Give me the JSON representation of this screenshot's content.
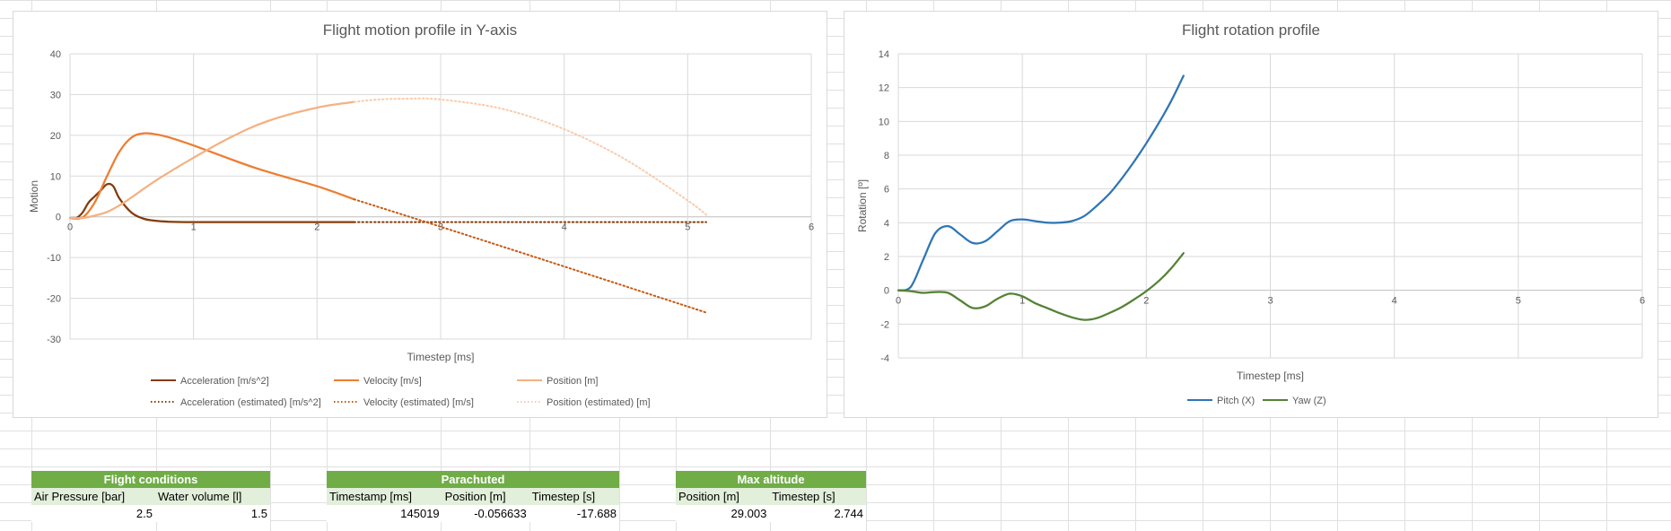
{
  "chart_data": [
    {
      "type": "line",
      "title": "Flight motion profile in Y-axis",
      "xlabel": "Timestep [ms]",
      "ylabel": "Motion",
      "xlim": [
        0,
        6
      ],
      "ylim": [
        -30,
        40
      ],
      "x_ticks": [
        0,
        1,
        2,
        3,
        4,
        5,
        6
      ],
      "y_ticks": [
        -30,
        -20,
        -10,
        0,
        10,
        20,
        30,
        40
      ],
      "grid": true,
      "legend_position": "bottom",
      "series": [
        {
          "name": "Acceleration [m/s^2]",
          "color": "#843c0c",
          "style": "solid",
          "x": [
            0,
            0.05,
            0.1,
            0.15,
            0.2,
            0.25,
            0.3,
            0.35,
            0.4,
            0.5,
            0.6,
            0.7,
            0.8,
            1.0,
            1.5,
            2.0,
            2.3
          ],
          "y": [
            -0.3,
            -0.3,
            1.0,
            3.5,
            5.0,
            6.5,
            8.0,
            7.5,
            4.5,
            1.0,
            -0.5,
            -1.0,
            -1.2,
            -1.3,
            -1.3,
            -1.3,
            -1.3
          ]
        },
        {
          "name": "Velocity [m/s]",
          "color": "#ed7d31",
          "style": "solid",
          "x": [
            0,
            0.1,
            0.2,
            0.3,
            0.4,
            0.5,
            0.6,
            0.7,
            0.8,
            1.0,
            1.5,
            2.0,
            2.3
          ],
          "y": [
            -0.3,
            -0.2,
            3.5,
            10.0,
            16.0,
            19.5,
            20.5,
            20.2,
            19.5,
            17.5,
            12.0,
            7.5,
            4.3
          ]
        },
        {
          "name": "Position [m]",
          "color": "#f4b183",
          "style": "solid",
          "x": [
            0,
            0.1,
            0.2,
            0.3,
            0.4,
            0.5,
            0.7,
            1.0,
            1.3,
            1.6,
            2.0,
            2.3
          ],
          "y": [
            -0.3,
            -0.3,
            0.3,
            1.2,
            2.8,
            4.8,
            9.0,
            14.5,
            19.5,
            23.5,
            26.8,
            28.2
          ]
        },
        {
          "name": "Acceleration (estimated) [m/s^2]",
          "color": "#843c0c",
          "style": "dotted",
          "x": [
            2.3,
            5.15
          ],
          "y": [
            -1.3,
            -1.3
          ]
        },
        {
          "name": "Velocity (estimated) [m/s]",
          "color": "#c55a11",
          "style": "dotted",
          "x": [
            2.3,
            2.8,
            3.5,
            4.0,
            4.5,
            5.15
          ],
          "y": [
            4.3,
            -0.5,
            -7.3,
            -12.2,
            -17.1,
            -23.5
          ]
        },
        {
          "name": "Position (estimated) [m]",
          "color": "#f8cbad",
          "style": "dotted",
          "x": [
            2.3,
            2.5,
            2.744,
            3.0,
            3.5,
            4.0,
            4.5,
            5.0,
            5.15
          ],
          "y": [
            28.2,
            28.8,
            29.0,
            28.8,
            26.5,
            21.5,
            14.0,
            4.0,
            0.5
          ]
        }
      ]
    },
    {
      "type": "line",
      "title": "Flight rotation profile",
      "xlabel": "Timestep [ms]",
      "ylabel": "Rotation [º]",
      "xlim": [
        0,
        6
      ],
      "ylim": [
        -4,
        14
      ],
      "x_ticks": [
        0,
        1,
        2,
        3,
        4,
        5,
        6
      ],
      "y_ticks": [
        -4,
        -2,
        0,
        2,
        4,
        6,
        8,
        10,
        12,
        14
      ],
      "grid": true,
      "legend_position": "bottom",
      "series": [
        {
          "name": "Pitch (X)",
          "color": "#2e75b6",
          "style": "solid",
          "x": [
            0,
            0.1,
            0.2,
            0.3,
            0.4,
            0.5,
            0.6,
            0.7,
            0.8,
            0.9,
            1.0,
            1.1,
            1.2,
            1.3,
            1.4,
            1.5,
            1.6,
            1.7,
            1.8,
            1.9,
            2.0,
            2.1,
            2.2,
            2.3
          ],
          "y": [
            0,
            0.2,
            1.8,
            3.4,
            3.8,
            3.3,
            2.8,
            2.9,
            3.5,
            4.1,
            4.2,
            4.1,
            4.0,
            4.0,
            4.1,
            4.4,
            5.0,
            5.7,
            6.6,
            7.6,
            8.7,
            9.9,
            11.2,
            12.7
          ]
        },
        {
          "name": "Yaw (Z)",
          "color": "#548235",
          "style": "solid",
          "x": [
            0,
            0.1,
            0.2,
            0.3,
            0.4,
            0.5,
            0.6,
            0.7,
            0.8,
            0.9,
            1.0,
            1.1,
            1.2,
            1.3,
            1.4,
            1.5,
            1.6,
            1.7,
            1.8,
            1.9,
            2.0,
            2.1,
            2.2,
            2.3
          ],
          "y": [
            0,
            -0.05,
            -0.15,
            -0.1,
            -0.15,
            -0.6,
            -1.05,
            -0.95,
            -0.5,
            -0.2,
            -0.35,
            -0.75,
            -1.05,
            -1.35,
            -1.6,
            -1.75,
            -1.65,
            -1.35,
            -1.0,
            -0.55,
            -0.05,
            0.55,
            1.3,
            2.2
          ]
        }
      ]
    }
  ],
  "tables": {
    "flight_conditions": {
      "header": "Flight conditions",
      "columns": [
        "Air Pressure [bar]",
        "Water volume [l]"
      ],
      "values": [
        "2.5",
        "1.5"
      ]
    },
    "parachuted": {
      "header": "Parachuted",
      "columns": [
        "Timestamp [ms]",
        "Position [m]",
        "Timestep [s]"
      ],
      "values": [
        "145019",
        "-0.056633",
        "-17.688"
      ]
    },
    "max_altitude": {
      "header": "Max altitude",
      "columns": [
        "Position [m]",
        "Timestep [s]"
      ],
      "values": [
        "29.003",
        "2.744"
      ]
    }
  },
  "colors": {
    "table_header": "#70ad47",
    "table_subheader": "#e2efda",
    "sheet_grid": "#e0e0e0"
  }
}
